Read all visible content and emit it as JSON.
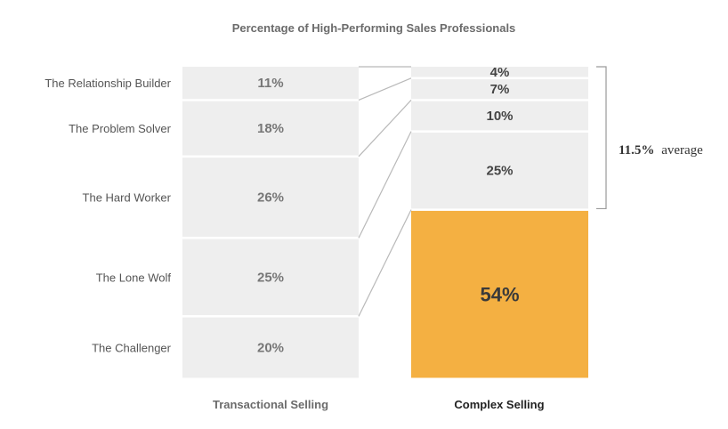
{
  "chart_data": {
    "type": "bar",
    "subtype": "stacked-100-percent",
    "title": "Percentage of High-Performing Sales Professionals",
    "categories": [
      "Transactional Selling",
      "Complex Selling"
    ],
    "series": [
      {
        "name": "The Relationship Builder",
        "values": [
          11,
          4
        ]
      },
      {
        "name": "The Problem Solver",
        "values": [
          18,
          7
        ]
      },
      {
        "name": "The Hard Worker",
        "values": [
          26,
          10
        ]
      },
      {
        "name": "The Lone Wolf",
        "values": [
          25,
          25
        ]
      },
      {
        "name": "The Challenger",
        "values": [
          20,
          54
        ]
      }
    ],
    "value_labels": {
      "transactional": [
        "11%",
        "18%",
        "26%",
        "25%",
        "20%"
      ],
      "complex": [
        "4%",
        "7%",
        "10%",
        "25%",
        "54%"
      ]
    },
    "annotation": {
      "value": "11.5%",
      "text": "average"
    },
    "colors": {
      "segment": "#eeeeee",
      "highlight": "#f4b042",
      "connector": "#b9b9b9"
    },
    "ylim": [
      0,
      100
    ]
  }
}
